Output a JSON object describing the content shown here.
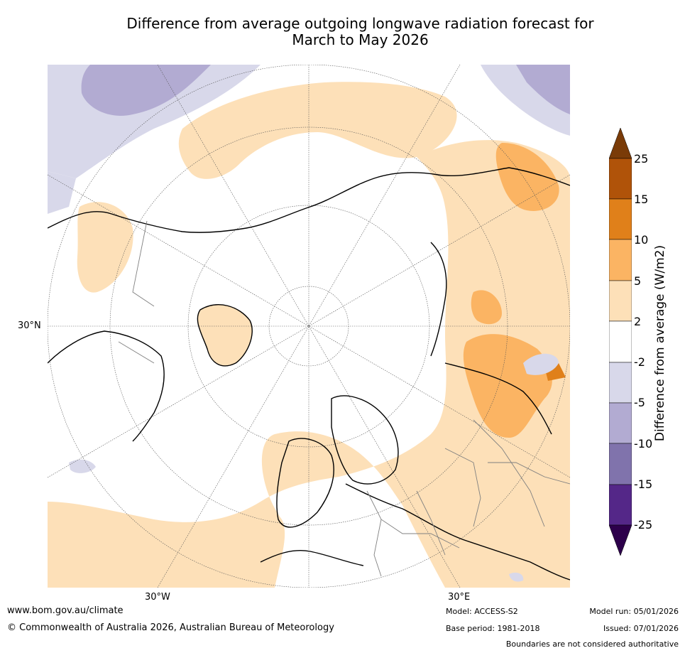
{
  "title_line1": "Difference from average outgoing longwave radiation forecast for",
  "title_line2": "March to May 2026",
  "axis_labels": {
    "lat_30n": "30°N",
    "lon_30w": "30°W",
    "lon_30e": "30°E"
  },
  "colorbar": {
    "label": "Difference from average (W/m2)",
    "ticks": [
      "25",
      "15",
      "10",
      "5",
      "2",
      "-2",
      "-5",
      "-10",
      "-15",
      "-25"
    ],
    "colors": {
      "above_25": "#7a3b08",
      "15_25": "#b05309",
      "10_15": "#e0801a",
      "5_10": "#fbb463",
      "2_5": "#fde0b8",
      "-2_2": "#ffffff",
      "-5_-2": "#d8d8ea",
      "-10_-5": "#b2abd2",
      "-15_-10": "#8073ac",
      "-25_-15": "#542788",
      "below_-25": "#2d004b"
    }
  },
  "footer": {
    "website": "www.bom.gov.au/climate",
    "copyright": "© Commonwealth of Australia 2026, Australian Bureau of Meteorology",
    "model": "Model: ACCESS-S2",
    "base_period": "Base period: 1981-2018",
    "model_run": "Model run: 05/01/2026",
    "issued": "Issued: 07/01/2026",
    "disclaimer": "Boundaries are not considered authoritative"
  }
}
